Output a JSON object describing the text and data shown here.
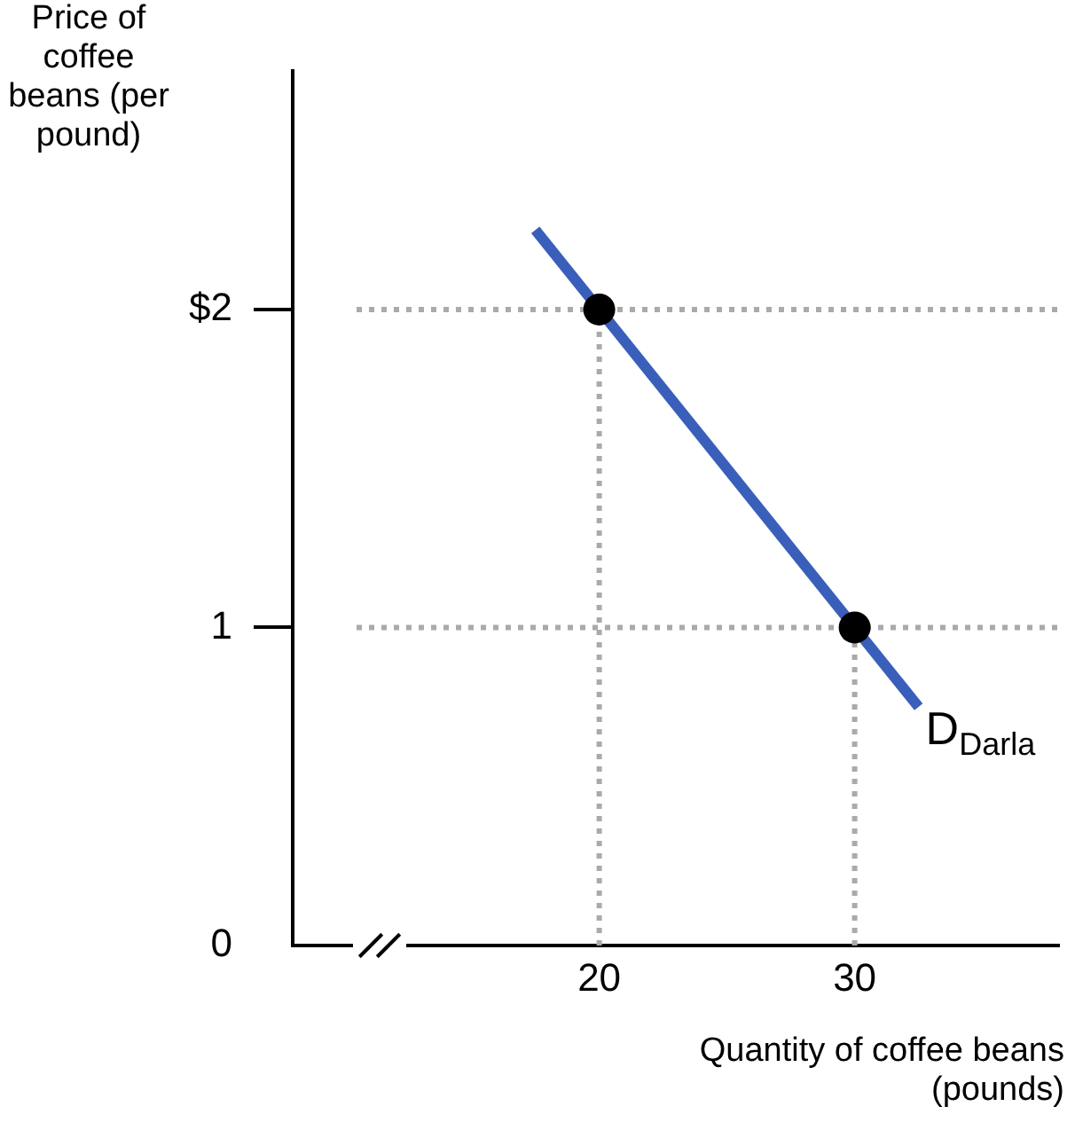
{
  "chart_data": {
    "type": "line",
    "xlabel": "Quantity of coffee beans (pounds)",
    "ylabel": "Price of coffee beans (per pound)",
    "xlim": [
      8,
      38
    ],
    "xticks": [
      20,
      30
    ],
    "ylim": [
      0,
      2.75
    ],
    "yticks": [
      0,
      1,
      {
        "value": 2,
        "label": "$2"
      }
    ],
    "grid": false,
    "legend": false,
    "series": [
      {
        "line_style": "dotted",
        "marker": "none",
        "color": "#aaaaaa",
        "x": [
          10.5,
          38
        ],
        "values": [
          2,
          2
        ]
      },
      {
        "line_style": "dotted",
        "marker": "none",
        "color": "#aaaaaa",
        "x": [
          10.5,
          38
        ],
        "values": [
          1,
          1
        ]
      },
      {
        "line_style": "dotted",
        "marker": "none",
        "color": "#aaaaaa",
        "x": [
          20,
          20
        ],
        "values": [
          0,
          2
        ]
      },
      {
        "line_style": "dotted",
        "marker": "none",
        "color": "#aaaaaa",
        "x": [
          30,
          30
        ],
        "values": [
          0,
          1
        ]
      },
      {
        "line_style": "solid",
        "marker": "none",
        "color": "#3a5fba",
        "x": [
          17.5,
          32.5
        ],
        "values": [
          2.25,
          0.75
        ]
      },
      {
        "type": "scatter",
        "marker": "circle",
        "color": "#000000",
        "x": [
          20,
          30
        ],
        "values": [
          2,
          1
        ]
      }
    ],
    "annotations": [
      {
        "text": "D$_{Darla}$",
        "x": 32.5,
        "y": 0.75
      }
    ]
  }
}
